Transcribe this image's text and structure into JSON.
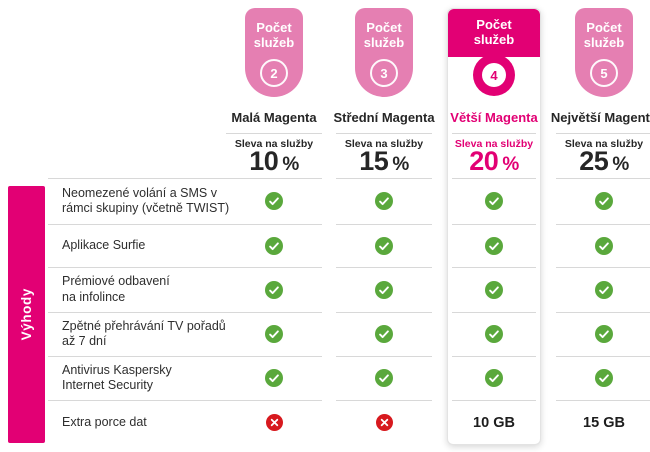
{
  "colors": {
    "magenta": "#e20074",
    "light_pink": "#e57fb2",
    "green": "#5aa83c",
    "red": "#d7191e",
    "separator": "#d8d8d8",
    "text": "#262626"
  },
  "sidebar": {
    "label": "Výhody"
  },
  "plans": [
    {
      "badge_label": "Počet\nslužeb",
      "services_count": "2",
      "name": "Malá Magenta",
      "discount_label": "Sleva na služby",
      "discount_value": "10",
      "discount_unit": "%",
      "highlighted": false
    },
    {
      "badge_label": "Počet\nslužeb",
      "services_count": "3",
      "name": "Střední Magenta",
      "discount_label": "Sleva na služby",
      "discount_value": "15",
      "discount_unit": "%",
      "highlighted": false
    },
    {
      "badge_label": "Počet\nslužeb",
      "services_count": "4",
      "name": "Větší Magenta",
      "discount_label": "Sleva na služby",
      "discount_value": "20",
      "discount_unit": "%",
      "highlighted": true
    },
    {
      "badge_label": "Počet\nslužeb",
      "services_count": "5",
      "name": "Největší Magenta",
      "discount_label": "Sleva na služby",
      "discount_value": "25",
      "discount_unit": "%",
      "highlighted": false
    }
  ],
  "benefits": [
    {
      "label": "Neomezené volání a SMS v\nrámci skupiny (včetně TWIST)"
    },
    {
      "label": "Aplikace Surfie"
    },
    {
      "label": "Prémiové odbavení\nna infolince"
    },
    {
      "label": "Zpětné přehrávání TV pořadů\naž 7 dní"
    },
    {
      "label": "Antivirus Kaspersky\nInternet Security"
    },
    {
      "label": "Extra porce dat"
    }
  ],
  "matrix": [
    [
      "check",
      "check",
      "check",
      "check"
    ],
    [
      "check",
      "check",
      "check",
      "check"
    ],
    [
      "check",
      "check",
      "check",
      "check"
    ],
    [
      "check",
      "check",
      "check",
      "check"
    ],
    [
      "check",
      "check",
      "check",
      "check"
    ],
    [
      "cross",
      "cross",
      "10 GB",
      "15 GB"
    ]
  ]
}
